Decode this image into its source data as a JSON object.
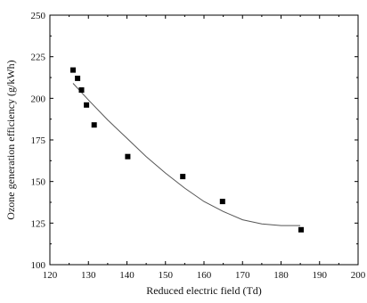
{
  "chart_data": {
    "type": "scatter",
    "title": "",
    "xlabel": "Reduced electric field (Td)",
    "ylabel": "Ozone generation efficiency (g/kWh)",
    "xlim": [
      120,
      200
    ],
    "ylim": [
      100,
      250
    ],
    "x_ticks": [
      120,
      130,
      140,
      150,
      160,
      170,
      180,
      190,
      200
    ],
    "y_ticks": [
      100,
      125,
      150,
      175,
      200,
      225,
      250
    ],
    "grid": false,
    "legend": "none",
    "series": [
      {
        "marker": "square",
        "color": "#000000",
        "points": [
          {
            "x": 126.0,
            "y": 217
          },
          {
            "x": 127.2,
            "y": 212
          },
          {
            "x": 128.2,
            "y": 205
          },
          {
            "x": 129.5,
            "y": 196
          },
          {
            "x": 131.5,
            "y": 184
          },
          {
            "x": 140.2,
            "y": 165
          },
          {
            "x": 154.5,
            "y": 153
          },
          {
            "x": 164.8,
            "y": 138
          },
          {
            "x": 185.2,
            "y": 121
          }
        ]
      }
    ],
    "fit_curve": {
      "type": "quadratic",
      "color": "#555555",
      "points": [
        {
          "x": 126.0,
          "y": 209
        },
        {
          "x": 130.0,
          "y": 199
        },
        {
          "x": 135.0,
          "y": 187
        },
        {
          "x": 140.0,
          "y": 176
        },
        {
          "x": 145.0,
          "y": 165
        },
        {
          "x": 150.0,
          "y": 155
        },
        {
          "x": 155.0,
          "y": 146
        },
        {
          "x": 160.0,
          "y": 138
        },
        {
          "x": 165.0,
          "y": 132
        },
        {
          "x": 170.0,
          "y": 127
        },
        {
          "x": 175.0,
          "y": 124.5
        },
        {
          "x": 180.0,
          "y": 123.5
        },
        {
          "x": 185.0,
          "y": 123.5
        }
      ]
    }
  }
}
